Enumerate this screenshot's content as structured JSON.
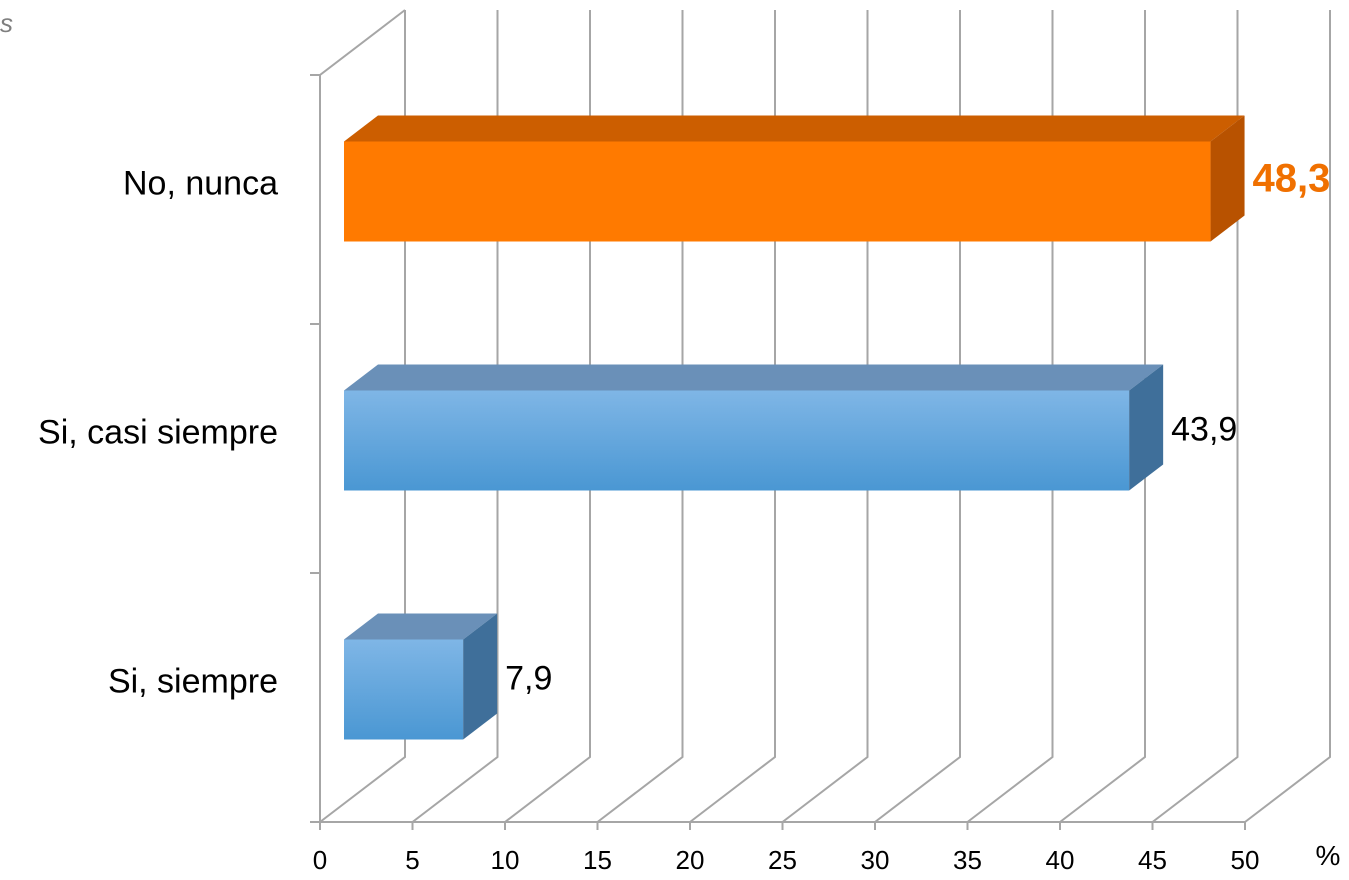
{
  "corner_text": "s",
  "chart_data": {
    "type": "bar",
    "orientation": "horizontal",
    "style": "3d",
    "categories": [
      "No, nunca",
      "Si, casi siempre",
      "Si, siempre"
    ],
    "values": [
      48.3,
      43.9,
      7.9
    ],
    "value_labels": [
      "48,3",
      "43,9",
      "7,9"
    ],
    "x_ticks": [
      "0",
      "5",
      "10",
      "15",
      "20",
      "25",
      "30",
      "35",
      "40",
      "45",
      "50"
    ],
    "xlim": [
      0,
      50
    ],
    "xunit": "%",
    "grid": true,
    "highlight_category": "No, nunca",
    "colors": {
      "highlight_front": "#ff7a00",
      "highlight_top": "#cc5e00",
      "highlight_side": "#b85200",
      "highlight_label": "#f07000",
      "normal_front_top": "#7fb6e6",
      "normal_front_bottom": "#4a97d3",
      "normal_top": "#6a90b8",
      "normal_side": "#3f6f9a",
      "label": "#000000",
      "grid": "#a6a6a6"
    }
  }
}
